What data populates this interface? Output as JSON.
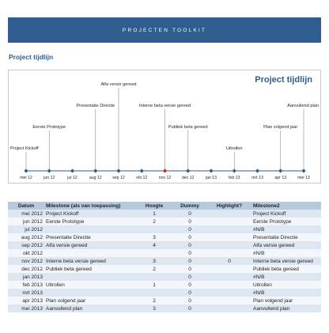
{
  "banner": {
    "text": "PROJECTEN TOOLKIT"
  },
  "section": {
    "title": "Project tijdlijn"
  },
  "chart_data": {
    "type": "timeline",
    "title": "Project tijdlijn",
    "categories": [
      "mei 12",
      "jun 12",
      "jul 12",
      "aug 12",
      "sep 12",
      "okt 12",
      "nov 12",
      "dec 12",
      "jan 13",
      "feb 13",
      "mrt 13",
      "apr 13",
      "mei 13"
    ],
    "highlight_index": 6,
    "milestones": [
      {
        "index": 0,
        "label": "Project Kickoff",
        "height": 1
      },
      {
        "index": 1,
        "label": "Eerste Prototype",
        "height": 2
      },
      {
        "index": 3,
        "label": "Presentatie Directie",
        "height": 3
      },
      {
        "index": 4,
        "label": "Alfa versie gereed",
        "height": 4
      },
      {
        "index": 6,
        "label": "Interne beta versie gereed",
        "height": 3
      },
      {
        "index": 7,
        "label": "Publiek beta gereed",
        "height": 2
      },
      {
        "index": 9,
        "label": "Uitrollen",
        "height": 1
      },
      {
        "index": 11,
        "label": "Plan volgend jaar",
        "height": 2
      },
      {
        "index": 12,
        "label": "Aanvullend plan",
        "height": 3
      }
    ],
    "colors": {
      "axis": "#2e5d8e",
      "marker": "#2e5d8e",
      "highlight": "#d42020",
      "title": "#2e5d8e"
    }
  },
  "table": {
    "headers": [
      "Datum",
      "Milestone (als van toepassing)",
      "Hoogte",
      "Dummy",
      "Highlight?",
      "Milestone2"
    ],
    "rows": [
      [
        "mei 2012",
        "Project Kickoff",
        "1",
        "0",
        "",
        "Project Kickoff"
      ],
      [
        "jun 2012",
        "Eerste Prototype",
        "2",
        "0",
        "",
        "Eerste Prototype"
      ],
      [
        "jul 2012",
        "",
        "",
        "0",
        "",
        "#N/B"
      ],
      [
        "aug 2012",
        "Presentatie Directie",
        "3",
        "0",
        "",
        "Presentatie Directie"
      ],
      [
        "sep 2012",
        "Alfa versie gereed",
        "4",
        "0",
        "",
        "Alfa versie gereed"
      ],
      [
        "okt 2012",
        "",
        "",
        "0",
        "",
        "#N/B"
      ],
      [
        "nov 2012",
        "Interne beta versie gereed",
        "3",
        "0",
        "0",
        "Interne beta versie gereed"
      ],
      [
        "dec 2012",
        "Publiek beta gereed",
        "2",
        "0",
        "",
        "Publiek beta gereed"
      ],
      [
        "jan 2013",
        "",
        "",
        "0",
        "",
        "#N/B"
      ],
      [
        "feb 2013",
        "Uitrollen",
        "1",
        "0",
        "",
        "Uitrollen"
      ],
      [
        "mrt 2013",
        "",
        "",
        "0",
        "",
        "#N/B"
      ],
      [
        "apr 2013",
        "Plan volgend jaar",
        "2",
        "0",
        "",
        "Plan volgend jaar"
      ],
      [
        "mei 2013",
        "Aanvullend plan",
        "3",
        "0",
        "",
        "Aanvullend plan"
      ]
    ]
  }
}
